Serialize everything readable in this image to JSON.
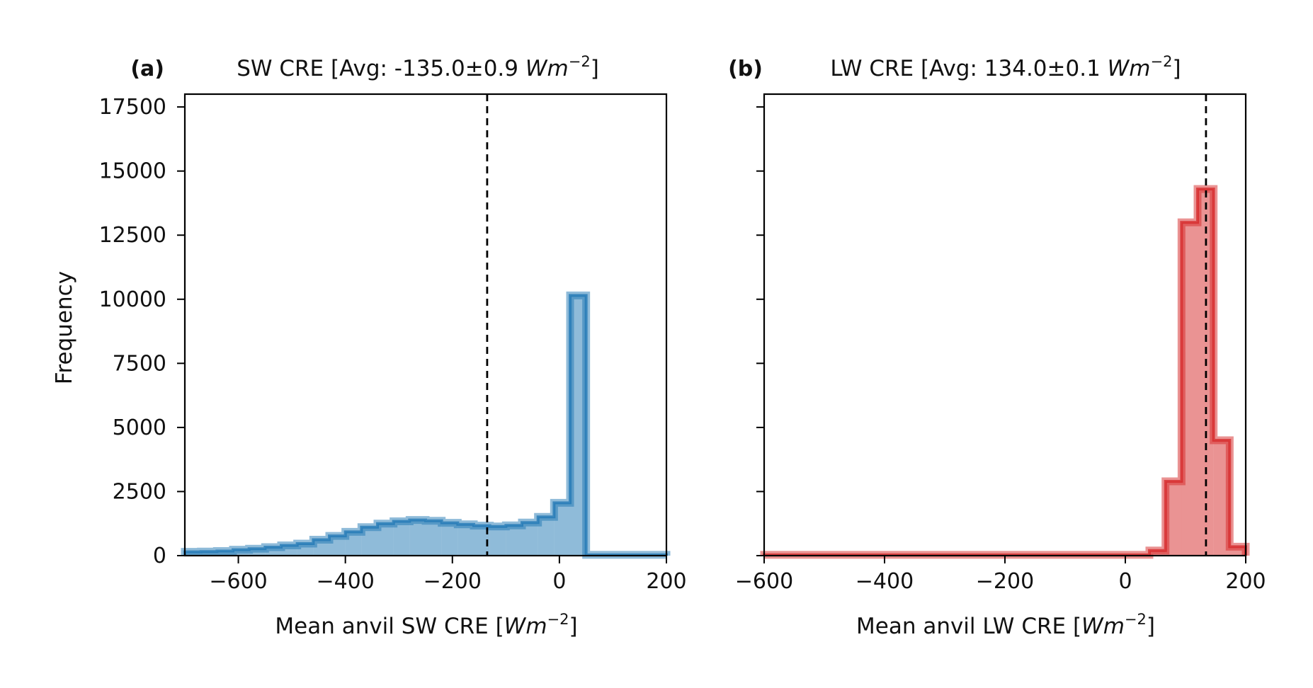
{
  "chart_data": [
    {
      "type": "histogram",
      "panel_label": "(a)",
      "title_prefix": "SW CRE [Avg: -135.0±0.9 ",
      "title_unit": "Wm",
      "title_exp": "−2",
      "title_suffix": "]",
      "xlabel_prefix": "Mean anvil SW CRE [",
      "xlabel_unit": "Wm",
      "xlabel_exp": "−2",
      "xlabel_suffix": "]",
      "ylabel": "Frequency",
      "xlim": [
        -700,
        200
      ],
      "ylim": [
        0,
        18000
      ],
      "xticks": [
        -600,
        -400,
        -200,
        0,
        200
      ],
      "xtick_labels": [
        "−600",
        "−400",
        "−200",
        "0",
        "200"
      ],
      "yticks": [
        0,
        2500,
        5000,
        7500,
        10000,
        12500,
        15000,
        17500
      ],
      "ytick_labels": [
        "0",
        "2500",
        "5000",
        "7500",
        "10000",
        "12500",
        "15000",
        "17500"
      ],
      "mean_line_x": -135.0,
      "color": "#1f77b4",
      "bin_width": 30,
      "bins_start": [
        -700,
        -670,
        -640,
        -610,
        -580,
        -550,
        -520,
        -490,
        -460,
        -430,
        -400,
        -370,
        -340,
        -310,
        -280,
        -250,
        -220,
        -190,
        -160,
        -130,
        -100,
        -70,
        -40,
        -10,
        20,
        50,
        80,
        110,
        140,
        170
      ],
      "counts": [
        150,
        160,
        180,
        230,
        270,
        330,
        400,
        470,
        620,
        770,
        930,
        1110,
        1250,
        1340,
        1390,
        1360,
        1280,
        1220,
        1170,
        1140,
        1180,
        1290,
        1510,
        2060,
        10150,
        30,
        30,
        30,
        30,
        30
      ]
    },
    {
      "type": "histogram",
      "panel_label": "(b)",
      "title_prefix": "LW CRE [Avg: 134.0±0.1 ",
      "title_unit": "Wm",
      "title_exp": "−2",
      "title_suffix": "]",
      "xlabel_prefix": "Mean anvil LW CRE [",
      "xlabel_unit": "Wm",
      "xlabel_exp": "−2",
      "xlabel_suffix": "]",
      "xlim": [
        -600,
        200
      ],
      "ylim": [
        0,
        18000
      ],
      "xticks": [
        -600,
        -400,
        -200,
        0,
        200
      ],
      "xtick_labels": [
        "−600",
        "−400",
        "−200",
        "0",
        "200"
      ],
      "yticks": [
        0,
        2500,
        5000,
        7500,
        10000,
        12500,
        15000,
        17500
      ],
      "mean_line_x": 134.0,
      "color": "#d62728",
      "bin_width": 26.7,
      "bins_start": [
        -600,
        -573.3,
        -546.7,
        -520,
        -493.3,
        -466.7,
        -440,
        -413.3,
        -386.7,
        -360,
        -333.3,
        -306.7,
        -280,
        -253.3,
        -226.7,
        -200,
        -173.3,
        -146.7,
        -120,
        -93.3,
        -66.7,
        -40,
        -13.3,
        13.3,
        40,
        66.7,
        93.3,
        120,
        146.7,
        173.3
      ],
      "counts": [
        30,
        30,
        30,
        30,
        30,
        30,
        30,
        30,
        30,
        30,
        30,
        30,
        30,
        30,
        30,
        30,
        30,
        30,
        30,
        30,
        30,
        30,
        30,
        30,
        200,
        2900,
        13000,
        14300,
        4500,
        350
      ]
    }
  ]
}
